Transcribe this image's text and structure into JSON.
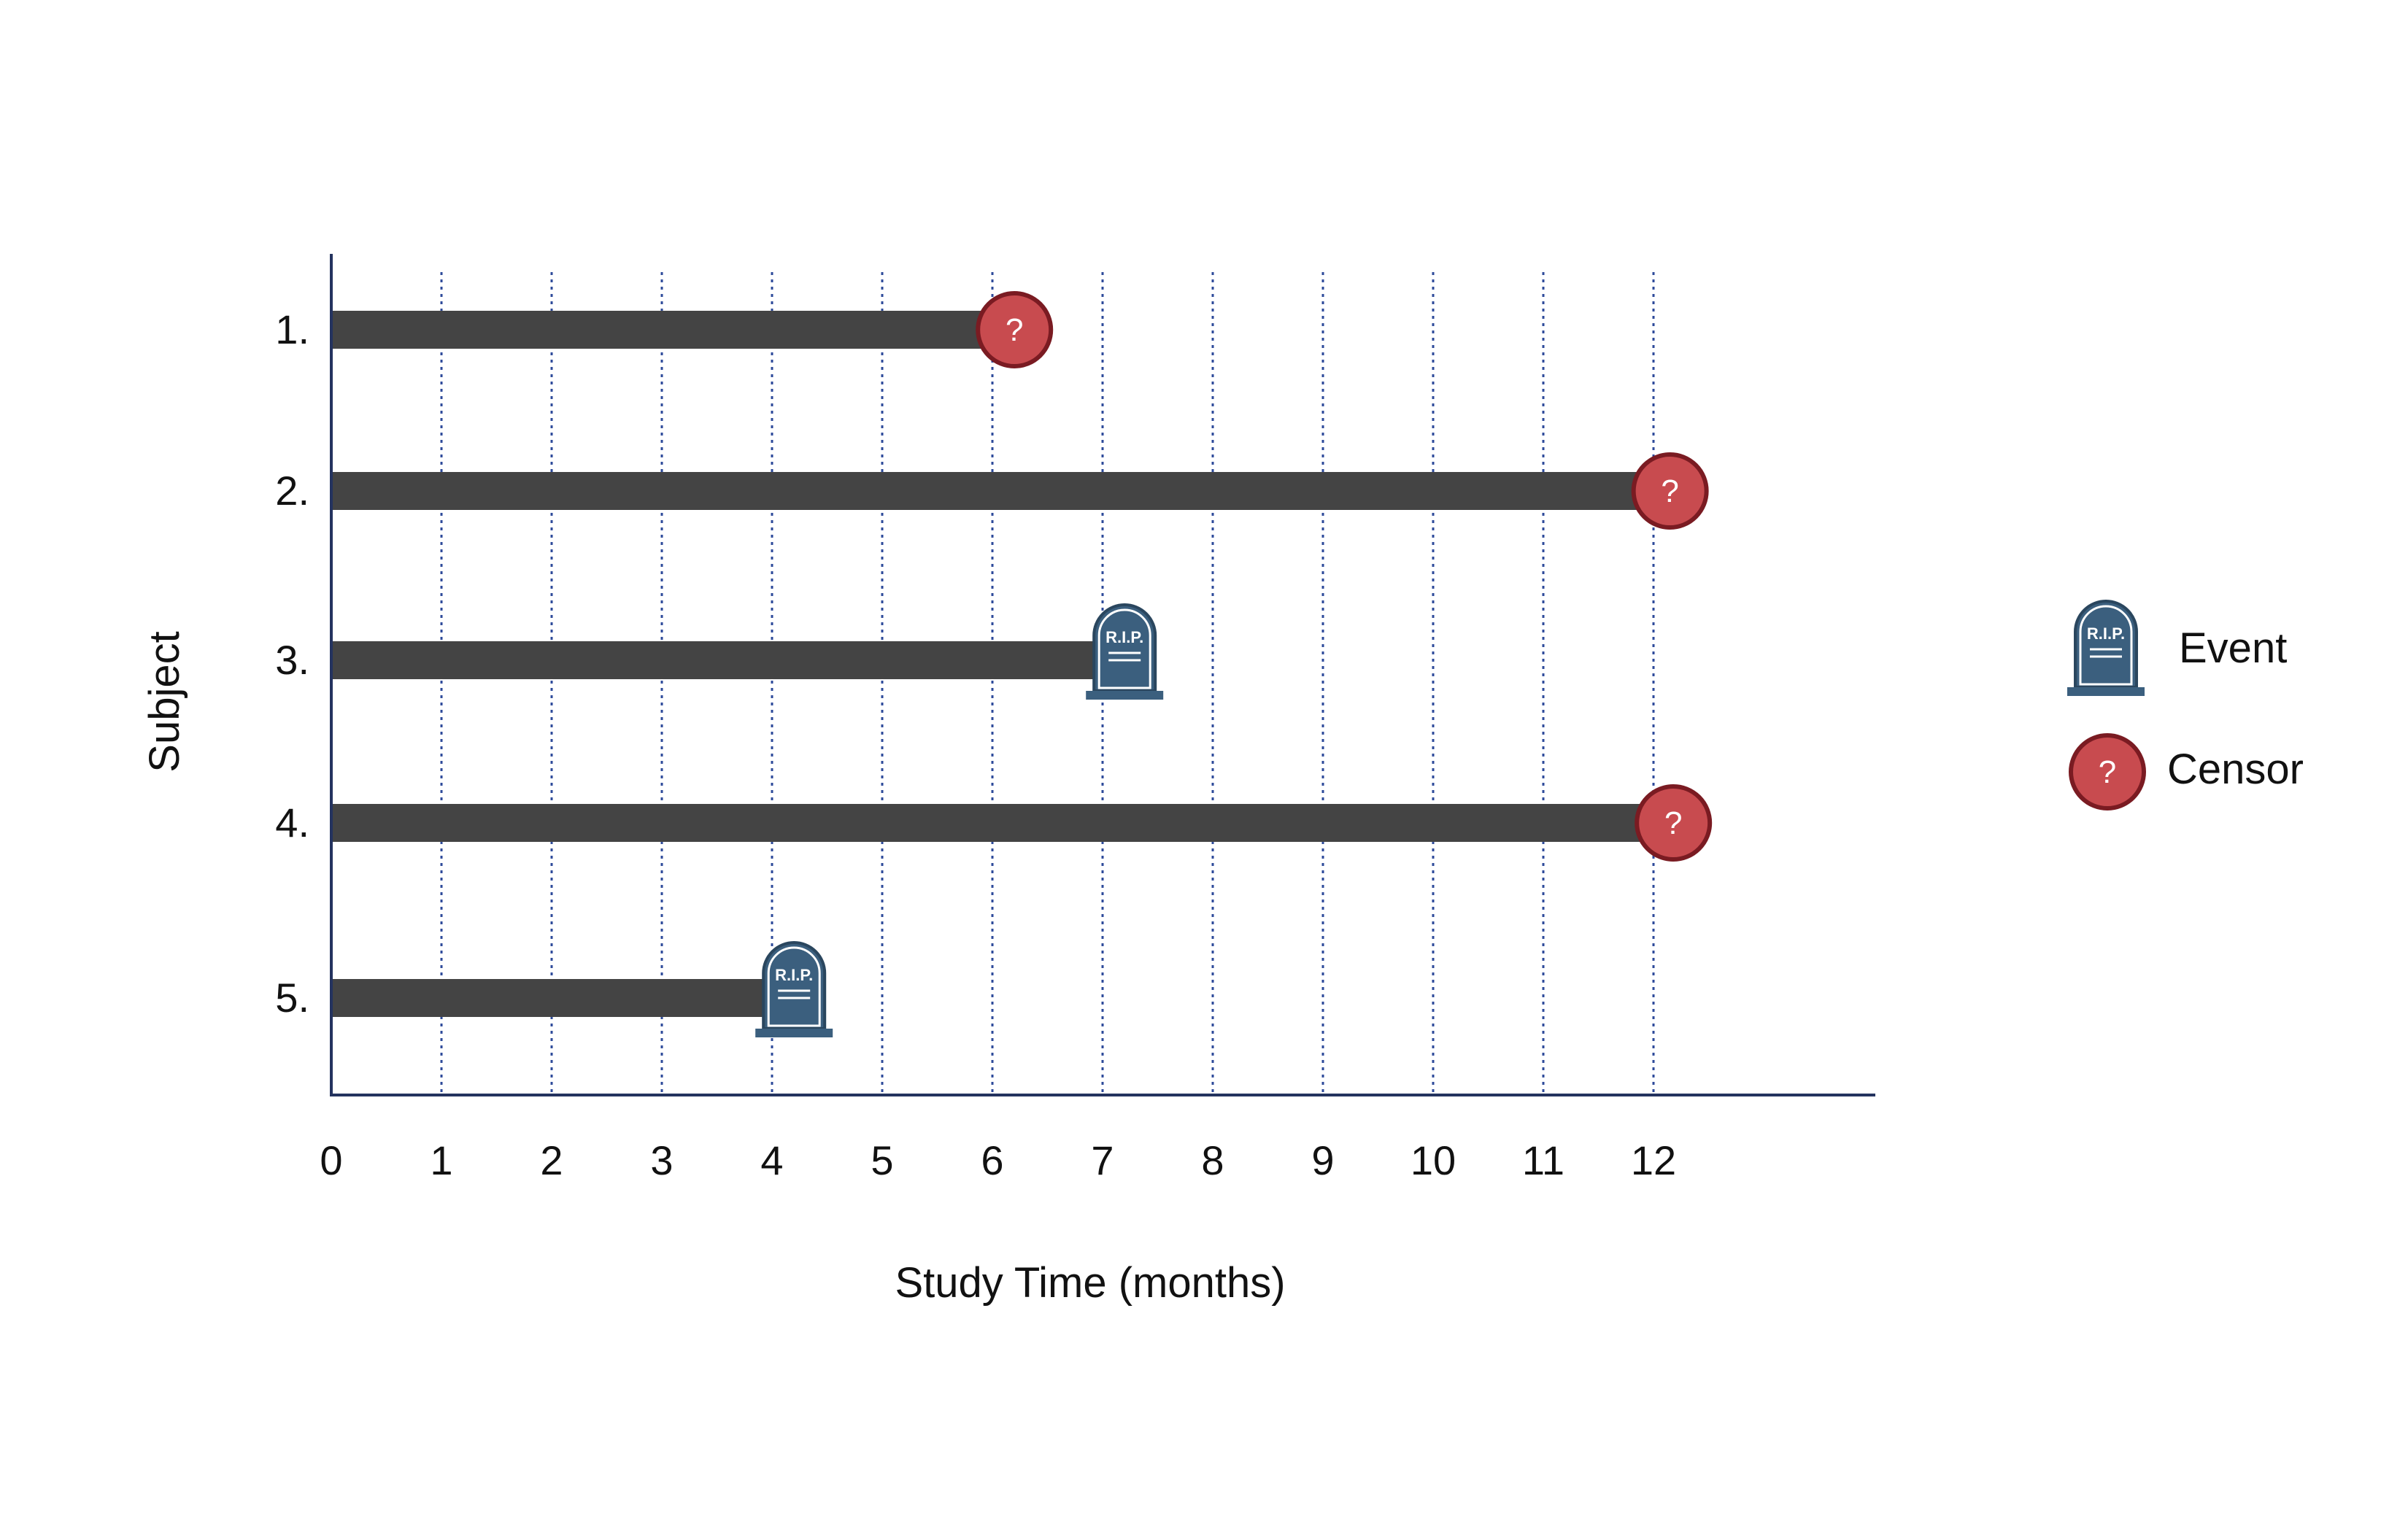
{
  "chart_data": {
    "type": "bar",
    "subtype": "swimmer-timeline",
    "xlabel": "Study Time (months)",
    "ylabel": "Subject",
    "xlim": [
      0,
      14
    ],
    "x_ticks": [
      "0",
      "1",
      "2",
      "3",
      "4",
      "5",
      "6",
      "7",
      "8",
      "9",
      "10",
      "11",
      "12"
    ],
    "grid": "vertical dotted lines at ticks 1-12",
    "series": [
      {
        "subject": "1.",
        "time": 6.2,
        "outcome": "censor"
      },
      {
        "subject": "2.",
        "time": 12.15,
        "outcome": "censor"
      },
      {
        "subject": "3.",
        "time": 7.2,
        "outcome": "event"
      },
      {
        "subject": "4.",
        "time": 12.18,
        "outcome": "censor"
      },
      {
        "subject": "5.",
        "time": 4.2,
        "outcome": "event"
      }
    ],
    "legend": {
      "position": "right",
      "items": [
        {
          "label": "Event",
          "icon": "tombstone-icon"
        },
        {
          "label": "Censor",
          "icon": "question-circle-icon"
        }
      ]
    },
    "markers": {
      "censor_symbol": "?",
      "event_text": "R.I.P."
    },
    "colors": {
      "bar": "#444444",
      "censor": "#c84b4f",
      "event": "#3b5f7e",
      "grid": "#2d4a9a",
      "axis": "#24335f"
    }
  }
}
